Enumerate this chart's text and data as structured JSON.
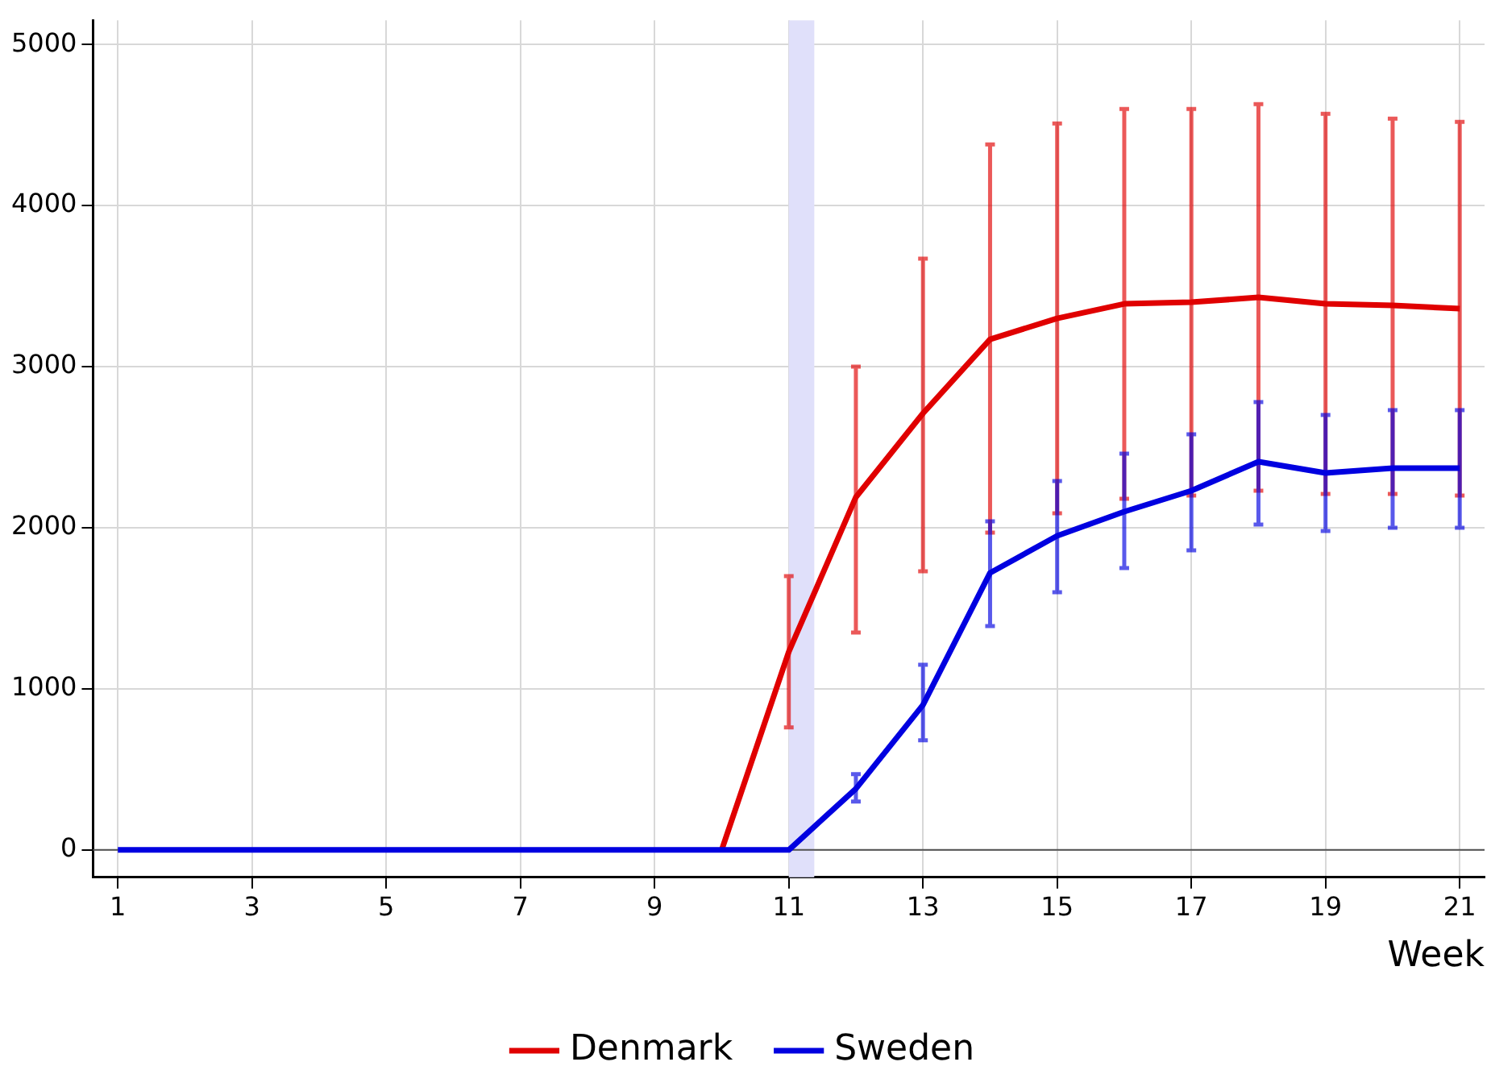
{
  "chart_data": {
    "type": "line",
    "xlabel": "Week",
    "x": [
      1,
      2,
      3,
      4,
      5,
      6,
      7,
      8,
      9,
      10,
      11,
      12,
      13,
      14,
      15,
      16,
      17,
      18,
      19,
      20,
      21
    ],
    "series": [
      {
        "name": "Denmark",
        "color": "#e00000",
        "values": [
          null,
          null,
          null,
          null,
          null,
          null,
          null,
          null,
          null,
          0,
          1230,
          2190,
          2710,
          3170,
          3300,
          3390,
          3400,
          3430,
          3390,
          3380,
          3360
        ],
        "errors": [
          null,
          null,
          null,
          null,
          null,
          null,
          null,
          null,
          null,
          null,
          [
            760,
            1700
          ],
          [
            1350,
            3000
          ],
          [
            1730,
            3670
          ],
          [
            1970,
            4380
          ],
          [
            2090,
            4510
          ],
          [
            2180,
            4600
          ],
          [
            2200,
            4600
          ],
          [
            2230,
            4630
          ],
          [
            2210,
            4570
          ],
          [
            2210,
            4540
          ],
          [
            2200,
            4520
          ]
        ]
      },
      {
        "name": "Sweden",
        "color": "#0000e0",
        "values": [
          0,
          0,
          0,
          0,
          0,
          0,
          0,
          0,
          0,
          0,
          0,
          380,
          900,
          1720,
          1950,
          2100,
          2230,
          2410,
          2340,
          2370,
          2370
        ],
        "errors": [
          null,
          null,
          null,
          null,
          null,
          null,
          null,
          null,
          null,
          null,
          null,
          [
            300,
            470
          ],
          [
            680,
            1150
          ],
          [
            1390,
            2040
          ],
          [
            1600,
            2290
          ],
          [
            1750,
            2460
          ],
          [
            1860,
            2580
          ],
          [
            2020,
            2780
          ],
          [
            1980,
            2700
          ],
          [
            2000,
            2730
          ],
          [
            2000,
            2730
          ]
        ]
      }
    ],
    "xlim": [
      0.63,
      21.37
    ],
    "xticks": [
      1,
      3,
      5,
      7,
      9,
      11,
      13,
      15,
      17,
      19,
      21
    ],
    "ylim": [
      -170,
      5150
    ],
    "yticks": [
      0,
      1000,
      2000,
      3000,
      4000,
      5000
    ],
    "bands": [
      {
        "axis": "x",
        "from": 11,
        "to": 11.38,
        "color": "#e0e0fa"
      }
    ],
    "ref_lines": [
      {
        "axis": "y",
        "value": 0,
        "color": "#505050"
      }
    ],
    "grid": true,
    "legend": "bottom",
    "marker": "none",
    "line_style": "solid"
  }
}
